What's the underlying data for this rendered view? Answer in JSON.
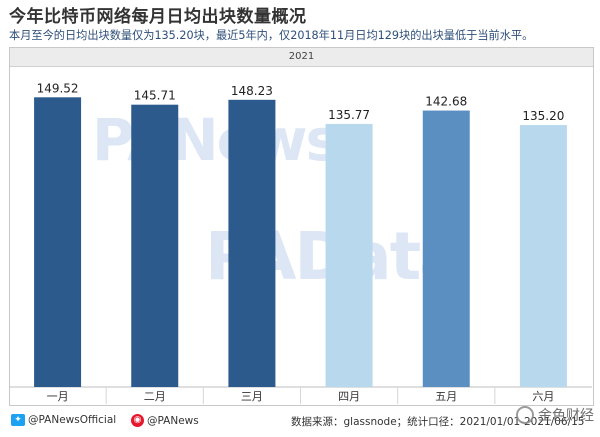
{
  "title": "今年比特币网络每月日均出块数量概况",
  "subtitle": "本月至今的日均出块数量仅为135.20块，最近5年内，仅2018年11月日均129块的出块量低于当前水平。",
  "year_label": "2021",
  "watermarks": [
    "PANews",
    "PAData"
  ],
  "footer": {
    "twitter_handle": "@PANewsOfficial",
    "weibo_handle": "@PANews",
    "source": "数据来源：glassnode；统计口径：2021/01/01-2021/06/15",
    "logo_text": "金色财经"
  },
  "colors": {
    "dark_blue": "#2c5a8c",
    "mid_blue": "#5b8fc1",
    "light_blue": "#b8d8ee",
    "accent_text": "#2e4f7a"
  },
  "chart_data": {
    "type": "bar",
    "title": "今年比特币网络每月日均出块数量概况",
    "categories": [
      "一月",
      "二月",
      "三月",
      "四月",
      "五月",
      "六月"
    ],
    "values": [
      149.52,
      145.71,
      148.23,
      135.77,
      142.68,
      135.2
    ],
    "value_labels": [
      "149.52",
      "145.71",
      "148.23",
      "135.77",
      "142.68",
      "135.20"
    ],
    "bar_colors": [
      "#2c5a8c",
      "#2c5a8c",
      "#2c5a8c",
      "#b8d8ee",
      "#5b8fc1",
      "#b8d8ee"
    ],
    "ylim": [
      0,
      160
    ],
    "grid": false,
    "xlabel": "",
    "ylabel": ""
  }
}
